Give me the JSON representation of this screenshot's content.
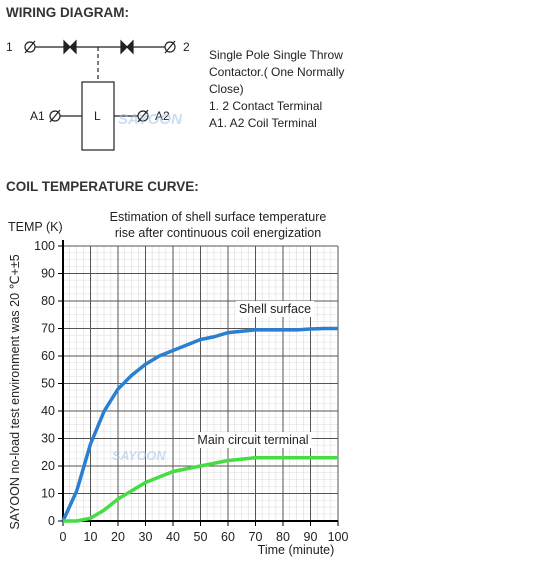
{
  "wiring": {
    "heading": "WIRING DIAGRAM:",
    "terminal_1": "1",
    "terminal_2": "2",
    "coil": "L",
    "coil_a1": "A1",
    "coil_a2": "A2",
    "description": [
      "Single Pole Single Throw",
      "Contactor.( One Normally",
      "Close)",
      "1. 2 Contact Terminal",
      "A1. A2 Coil Terminal"
    ],
    "watermark": "SAYOON"
  },
  "curve_heading": "COIL TEMPERATURE CURVE:",
  "chart_data": {
    "type": "line",
    "title": [
      "Estimation of shell surface temperature",
      "rise after continuous coil energization"
    ],
    "y_label": "TEMP (K)",
    "x_label": "Time (minute)",
    "side_note": "SAYOON no-load test environment was 20 ℃+±5",
    "x": [
      0,
      5,
      10,
      15,
      20,
      25,
      30,
      35,
      40,
      45,
      50,
      55,
      60,
      65,
      70,
      75,
      80,
      85,
      90,
      95,
      100
    ],
    "series": [
      {
        "name": "Shell surface",
        "color": "#2a7fd0",
        "values": [
          0,
          11,
          28,
          40,
          48,
          53,
          57,
          60,
          62,
          64,
          66,
          67,
          68.5,
          69,
          69.5,
          69.5,
          69.5,
          69.5,
          69.8,
          70,
          70
        ]
      },
      {
        "name": "Main circuit terminal",
        "color": "#44dd44",
        "values": [
          0,
          0,
          1,
          4,
          8,
          11,
          14,
          16,
          18,
          19,
          20,
          21,
          22,
          22.5,
          23,
          23,
          23,
          23,
          23,
          23,
          23
        ]
      }
    ],
    "xlim": [
      0,
      100
    ],
    "ylim": [
      0,
      100
    ],
    "xticks": [
      0,
      10,
      20,
      30,
      40,
      50,
      60,
      70,
      80,
      90,
      100
    ],
    "yticks": [
      0,
      10,
      20,
      30,
      40,
      50,
      60,
      70,
      80,
      90,
      100
    ],
    "grid": true
  }
}
